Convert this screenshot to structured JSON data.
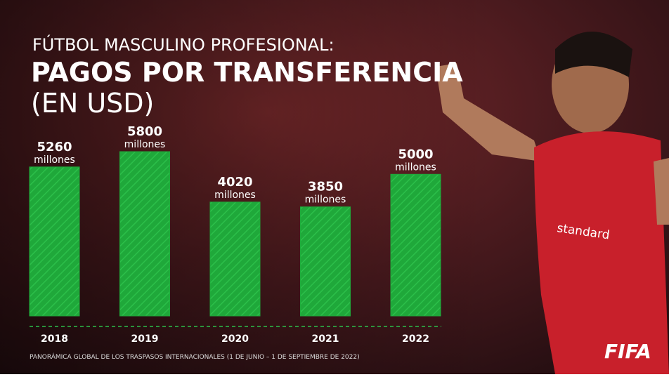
{
  "chart_data": {
    "type": "bar",
    "supertitle": "FÚTBOL MASCULINO PROFESIONAL:",
    "title": "PAGOS POR TRANSFERENCIA",
    "subtitle": "(EN USD)",
    "categories": [
      "2018",
      "2019",
      "2020",
      "2021",
      "2022"
    ],
    "values": [
      5260,
      5800,
      4020,
      3850,
      5000
    ],
    "unit_label": "millones",
    "color": "#1fa83a",
    "source": "PANORÁMICA GLOBAL DE LOS TRASPASOS INTERNACIONALES (1 DE JUNIO – 1 DE SEPTIEMBRE DE 2022)",
    "logo": "FIFA"
  }
}
